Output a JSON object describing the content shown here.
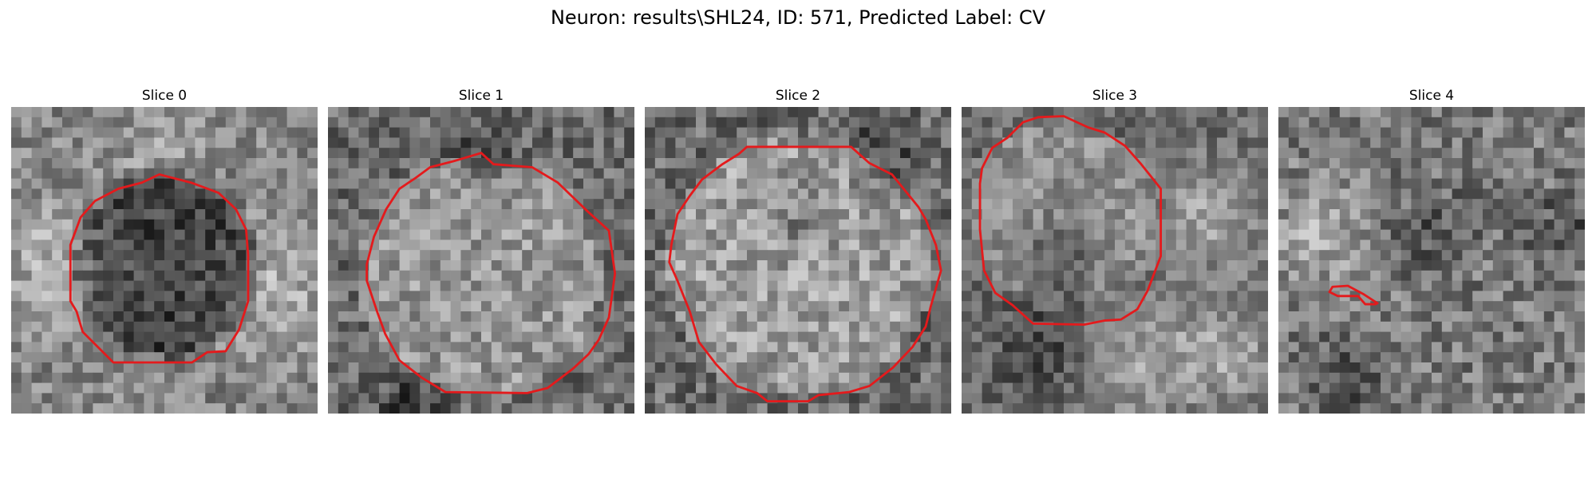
{
  "figure": {
    "title": "Neuron: results\\SHL24, ID: 571, Predicted Label: CV"
  },
  "colors": {
    "background": "#ffffff",
    "contour": "#e41a1c",
    "image_colormap": "grayscale"
  },
  "panels": [
    {
      "title": "Slice 0",
      "content": "grayscale microscopy patch with dark blob outlined by red contour"
    },
    {
      "title": "Slice 1",
      "content": "grayscale microscopy patch with bright round cell outlined by red contour"
    },
    {
      "title": "Slice 2",
      "content": "grayscale microscopy patch with large round cell outlined by red contour"
    },
    {
      "title": "Slice 3",
      "content": "grayscale microscopy patch with round cell in upper left outlined by red contour"
    },
    {
      "title": "Slice 4",
      "content": "grayscale microscopy patch with small red contour fragment"
    }
  ]
}
